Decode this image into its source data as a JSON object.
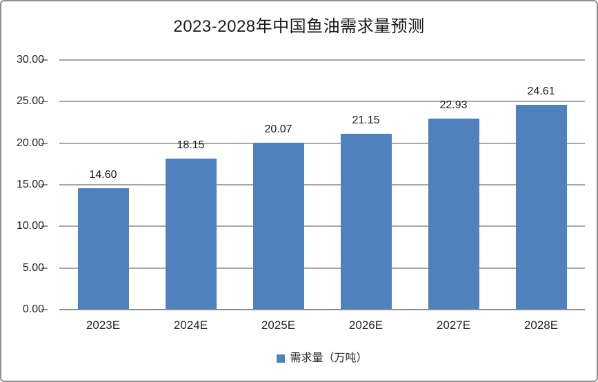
{
  "frame": {
    "background_color": "#ffffff",
    "border_color": "#8f8f8f"
  },
  "chart_data": {
    "type": "bar",
    "title": "2023-2028年中国鱼油需求量预测",
    "categories": [
      "2023E",
      "2024E",
      "2025E",
      "2026E",
      "2027E",
      "2028E"
    ],
    "values": [
      14.6,
      18.15,
      20.07,
      21.15,
      22.93,
      24.61
    ],
    "value_labels": [
      "14.60",
      "18.15",
      "20.07",
      "21.15",
      "22.93",
      "24.61"
    ],
    "series_name": "需求量（万吨）",
    "legend_label": "需求量（万吨）",
    "legend_position": "bottom",
    "xlabel": "",
    "ylabel": "",
    "ylim": [
      0,
      30
    ],
    "ytick_step": 5,
    "yticks": [
      "0.00",
      "5.00",
      "10.00",
      "15.00",
      "20.00",
      "25.00",
      "30.00"
    ],
    "grid": true,
    "bar_color": "#4F81BD",
    "gridline_color": "#a6a6a6",
    "axis_color": "#8c8c8c",
    "text_color": "#262626"
  }
}
